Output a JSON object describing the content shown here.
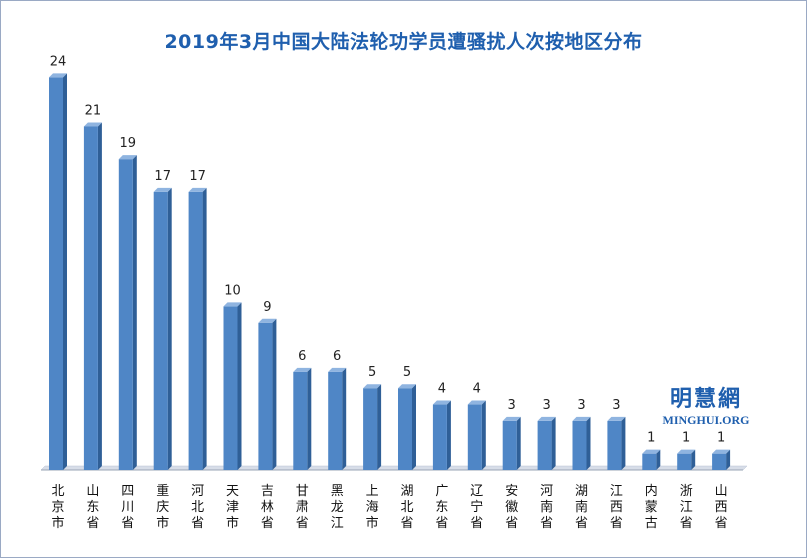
{
  "chart_data": {
    "type": "bar",
    "title": "2019年3月中国大陆法轮功学员遭骚扰人次按地区分布",
    "categories": [
      "北京市",
      "山东省",
      "四川省",
      "重庆市",
      "河北省",
      "天津市",
      "吉林省",
      "甘肃省",
      "黑龙江",
      "上海市",
      "湖北省",
      "广东省",
      "辽宁省",
      "安徽省",
      "河南省",
      "湖南省",
      "江西省",
      "内蒙古",
      "浙江省",
      "山西省"
    ],
    "values": [
      24,
      21,
      19,
      17,
      17,
      10,
      9,
      6,
      6,
      5,
      5,
      4,
      4,
      3,
      3,
      3,
      3,
      1,
      1,
      1
    ],
    "ylim": [
      0,
      25
    ],
    "grid": false,
    "bar_color": "#4f86c6",
    "bar_side_color": "#2f5f97",
    "bar_top_color": "#8fb4e0",
    "title_color": "#1f5fae"
  },
  "watermark": {
    "name": "明慧網",
    "site": "MINGHUI.ORG"
  }
}
